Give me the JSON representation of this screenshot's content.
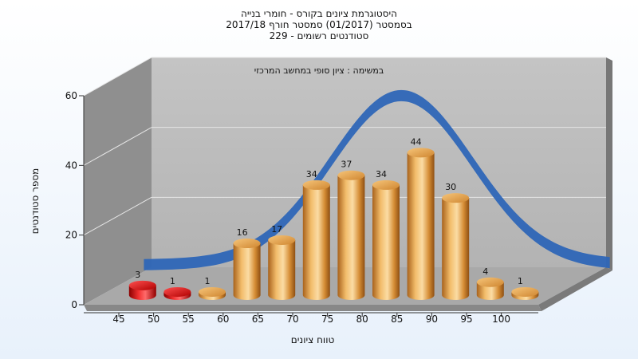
{
  "chart_data": {
    "type": "bar",
    "title_lines": [
      "היסטוגרמת ציונים בקורס - חומרי בנייה",
      "בסמסטר  (01/2017)  סמסטר חורף 2017/18",
      "סטודנטים רשומים - 229"
    ],
    "subtitle": "במשימה : ציון סופי במחשב המרכזי",
    "xlabel": "טווח ציונים",
    "ylabel": "מספר סטודנטים",
    "categories": [
      "45",
      "50",
      "55",
      "60",
      "65",
      "70",
      "75",
      "80",
      "85",
      "90",
      "95",
      "100"
    ],
    "values": [
      3,
      1,
      1,
      16,
      17,
      34,
      37,
      34,
      44,
      30,
      4,
      1
    ],
    "y_ticks": [
      "0",
      "20",
      "40",
      "60"
    ],
    "ylim": [
      0,
      60
    ],
    "grid": true,
    "legend": "none",
    "colors": {
      "bar_low": "#d91a1a",
      "bar_normal": "#e3a048",
      "curve": "#2e66b7",
      "wall": "#bdbdbd",
      "side_wall": "#8c8c8c"
    }
  }
}
